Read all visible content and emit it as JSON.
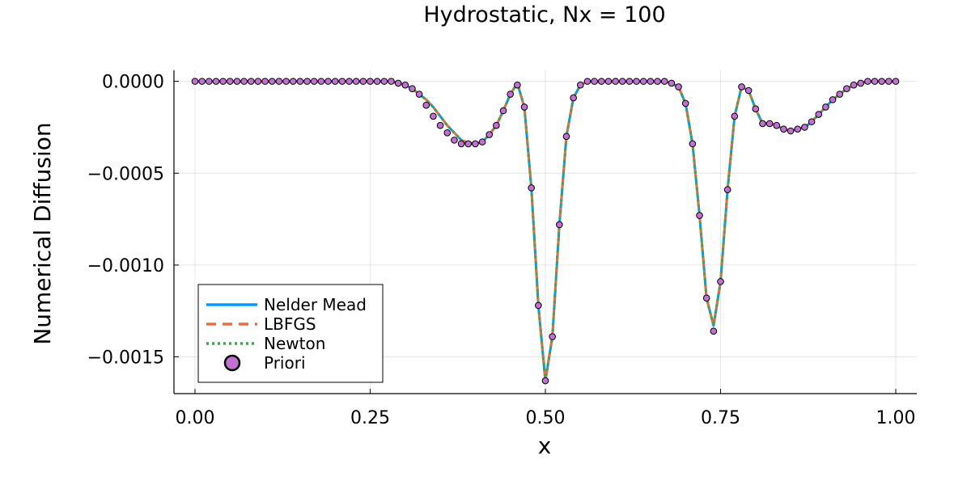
{
  "chart_data": {
    "type": "line",
    "title": "Hydrostatic, Nx = 100",
    "xlabel": "x",
    "ylabel": "Numerical Diffusion",
    "xlim": [
      -0.03,
      1.03
    ],
    "ylim": [
      -0.0017,
      6e-05
    ],
    "grid": true,
    "legend_position": "bottom-left",
    "xticks": [
      0.0,
      0.25,
      0.5,
      0.75,
      1.0
    ],
    "xtick_labels": [
      "0.00",
      "0.25",
      "0.50",
      "0.75",
      "1.00"
    ],
    "yticks": [
      0.0,
      -0.0005,
      -0.001,
      -0.0015
    ],
    "ytick_labels": [
      "0.0000",
      "−0.0005",
      "−0.0010",
      "−0.0015"
    ],
    "x": [
      0.0,
      0.01,
      0.02,
      0.03,
      0.04,
      0.05,
      0.06,
      0.07,
      0.08,
      0.09,
      0.1,
      0.11,
      0.12,
      0.13,
      0.14,
      0.15,
      0.16,
      0.17,
      0.18,
      0.19,
      0.2,
      0.21,
      0.22,
      0.23,
      0.24,
      0.25,
      0.26,
      0.27,
      0.28,
      0.29,
      0.3,
      0.31,
      0.32,
      0.33,
      0.34,
      0.35,
      0.36,
      0.37,
      0.38,
      0.39,
      0.4,
      0.41,
      0.42,
      0.43,
      0.44,
      0.45,
      0.46,
      0.47,
      0.48,
      0.49,
      0.5,
      0.51,
      0.52,
      0.53,
      0.54,
      0.55,
      0.56,
      0.57,
      0.58,
      0.59,
      0.6,
      0.61,
      0.62,
      0.63,
      0.64,
      0.65,
      0.66,
      0.67,
      0.68,
      0.69,
      0.7,
      0.71,
      0.72,
      0.73,
      0.74,
      0.75,
      0.76,
      0.77,
      0.78,
      0.79,
      0.8,
      0.81,
      0.82,
      0.83,
      0.84,
      0.85,
      0.86,
      0.87,
      0.88,
      0.89,
      0.9,
      0.91,
      0.92,
      0.93,
      0.94,
      0.95,
      0.96,
      0.97,
      0.98,
      0.99,
      1.0
    ],
    "series": [
      {
        "name": "Nelder Mead",
        "color": "#009AFA",
        "style": "solid",
        "values": [
          0,
          0,
          0,
          0,
          0,
          0,
          0,
          0,
          0,
          0,
          0,
          0,
          0,
          0,
          0,
          0,
          0,
          0,
          0,
          0,
          0,
          0,
          0,
          0,
          0,
          0,
          0,
          0,
          0,
          -1e-05,
          -2e-05,
          -4e-05,
          -7e-05,
          -0.0001,
          -0.00014,
          -0.00019,
          -0.00024,
          -0.00028,
          -0.00032,
          -0.000335,
          -0.00034,
          -0.00033,
          -0.00029,
          -0.00024,
          -0.00016,
          -7e-05,
          -1e-05,
          -0.00014,
          -0.00058,
          -0.00122,
          -0.00163,
          -0.00139,
          -0.00078,
          -0.0003,
          -9e-05,
          -2e-05,
          0,
          0,
          0,
          0,
          0,
          0,
          0,
          0,
          0,
          0,
          0,
          0,
          -1e-05,
          -3e-05,
          -0.00012,
          -0.00034,
          -0.00073,
          -0.00118,
          -0.00133,
          -0.00109,
          -0.00059,
          -0.00019,
          -3e-05,
          -5e-05,
          -0.00015,
          -0.00023,
          -0.00023,
          -0.00024,
          -0.00026,
          -0.00027,
          -0.00026,
          -0.00025,
          -0.00022,
          -0.00018,
          -0.00014,
          -0.0001,
          -7e-05,
          -4e-05,
          -2e-05,
          -1e-05,
          0,
          0,
          0,
          0,
          0
        ]
      },
      {
        "name": "LBFGS",
        "color": "#E26F46",
        "style": "dashed",
        "values": [
          0,
          0,
          0,
          0,
          0,
          0,
          0,
          0,
          0,
          0,
          0,
          0,
          0,
          0,
          0,
          0,
          0,
          0,
          0,
          0,
          0,
          0,
          0,
          0,
          0,
          0,
          0,
          0,
          0,
          -1e-05,
          -2e-05,
          -4e-05,
          -7e-05,
          -0.0001,
          -0.00014,
          -0.00019,
          -0.00024,
          -0.00028,
          -0.00032,
          -0.000335,
          -0.00034,
          -0.00033,
          -0.00029,
          -0.00024,
          -0.00016,
          -7e-05,
          -1e-05,
          -0.00014,
          -0.00058,
          -0.00122,
          -0.00163,
          -0.00139,
          -0.00078,
          -0.0003,
          -9e-05,
          -2e-05,
          0,
          0,
          0,
          0,
          0,
          0,
          0,
          0,
          0,
          0,
          0,
          0,
          -1e-05,
          -3e-05,
          -0.00012,
          -0.00034,
          -0.00073,
          -0.00118,
          -0.00133,
          -0.00109,
          -0.00059,
          -0.00019,
          -3e-05,
          -5e-05,
          -0.00015,
          -0.00023,
          -0.00023,
          -0.00024,
          -0.00026,
          -0.00027,
          -0.00026,
          -0.00025,
          -0.00022,
          -0.00018,
          -0.00014,
          -0.0001,
          -7e-05,
          -4e-05,
          -2e-05,
          -1e-05,
          0,
          0,
          0,
          0,
          0
        ]
      },
      {
        "name": "Newton",
        "color": "#3EA44E",
        "style": "dotted",
        "values": [
          0,
          0,
          0,
          0,
          0,
          0,
          0,
          0,
          0,
          0,
          0,
          0,
          0,
          0,
          0,
          0,
          0,
          0,
          0,
          0,
          0,
          0,
          0,
          0,
          0,
          0,
          0,
          0,
          0,
          -1e-05,
          -2e-05,
          -4e-05,
          -7e-05,
          -0.0001,
          -0.00014,
          -0.00019,
          -0.00024,
          -0.00028,
          -0.00032,
          -0.000335,
          -0.00034,
          -0.00033,
          -0.00029,
          -0.00024,
          -0.00016,
          -7e-05,
          -1e-05,
          -0.00014,
          -0.00058,
          -0.00122,
          -0.00163,
          -0.00139,
          -0.00078,
          -0.0003,
          -9e-05,
          -2e-05,
          0,
          0,
          0,
          0,
          0,
          0,
          0,
          0,
          0,
          0,
          0,
          0,
          -1e-05,
          -3e-05,
          -0.00012,
          -0.00034,
          -0.00073,
          -0.00118,
          -0.00133,
          -0.00109,
          -0.00059,
          -0.00019,
          -3e-05,
          -5e-05,
          -0.00015,
          -0.00023,
          -0.00023,
          -0.00024,
          -0.00026,
          -0.00027,
          -0.00026,
          -0.00025,
          -0.00022,
          -0.00018,
          -0.00014,
          -0.0001,
          -7e-05,
          -4e-05,
          -2e-05,
          -1e-05,
          0,
          0,
          0,
          0,
          0
        ]
      },
      {
        "name": "Priori",
        "color": "#C271D2",
        "style": "markers",
        "values": [
          0,
          0,
          0,
          0,
          0,
          0,
          0,
          0,
          0,
          0,
          0,
          0,
          0,
          0,
          0,
          0,
          0,
          0,
          0,
          0,
          0,
          0,
          0,
          0,
          0,
          0,
          0,
          0,
          0,
          -1e-05,
          -2e-05,
          -4e-05,
          -7e-05,
          -0.00013,
          -0.00019,
          -0.00024,
          -0.00028,
          -0.00032,
          -0.00034,
          -0.00034,
          -0.00034,
          -0.00033,
          -0.00029,
          -0.00024,
          -0.00016,
          -7e-05,
          -2e-05,
          -0.00014,
          -0.00058,
          -0.00122,
          -0.00163,
          -0.00139,
          -0.00078,
          -0.0003,
          -9e-05,
          -2e-05,
          0,
          0,
          0,
          0,
          0,
          0,
          0,
          0,
          0,
          0,
          0,
          0,
          -1e-05,
          -3e-05,
          -0.00012,
          -0.00034,
          -0.00073,
          -0.00118,
          -0.00136,
          -0.00109,
          -0.00059,
          -0.00019,
          -3e-05,
          -5e-05,
          -0.00015,
          -0.00023,
          -0.00023,
          -0.00024,
          -0.00026,
          -0.00027,
          -0.00026,
          -0.00025,
          -0.00022,
          -0.00018,
          -0.00014,
          -0.0001,
          -7e-05,
          -4e-05,
          -2e-05,
          -1e-05,
          0,
          0,
          0,
          0,
          0
        ]
      }
    ]
  }
}
